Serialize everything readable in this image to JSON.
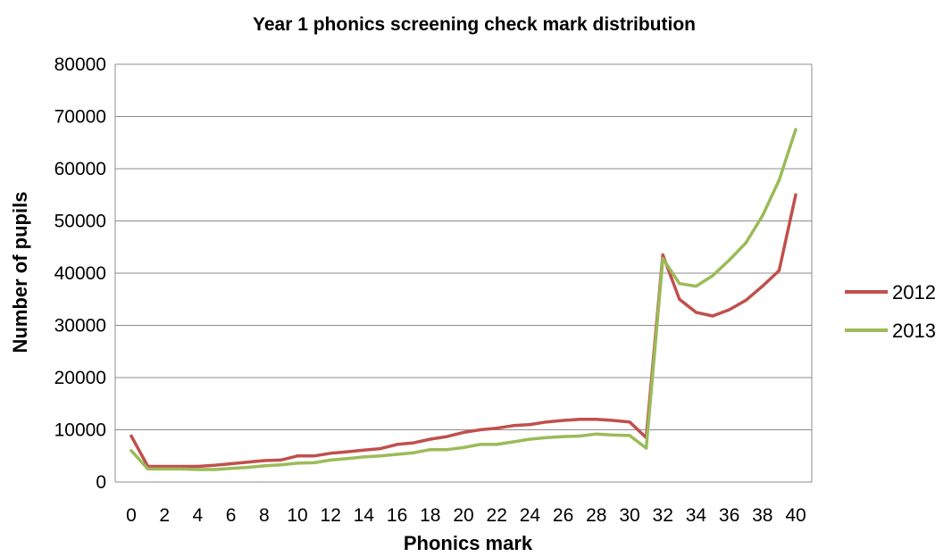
{
  "chart_data": {
    "type": "line",
    "title": "Year 1 phonics screening check mark distribution",
    "xlabel": "Phonics mark",
    "ylabel": "Number of pupils",
    "x": [
      0,
      1,
      2,
      3,
      4,
      5,
      6,
      7,
      8,
      9,
      10,
      11,
      12,
      13,
      14,
      15,
      16,
      17,
      18,
      19,
      20,
      21,
      22,
      23,
      24,
      25,
      26,
      27,
      28,
      29,
      30,
      31,
      32,
      33,
      34,
      35,
      36,
      37,
      38,
      39,
      40
    ],
    "xticks": [
      "0",
      "2",
      "4",
      "6",
      "8",
      "10",
      "12",
      "14",
      "16",
      "18",
      "20",
      "22",
      "24",
      "26",
      "28",
      "30",
      "32",
      "34",
      "36",
      "38",
      "40"
    ],
    "yticks": [
      "0",
      "10000",
      "20000",
      "30000",
      "40000",
      "50000",
      "60000",
      "70000",
      "80000"
    ],
    "ylim": [
      0,
      80000
    ],
    "xlim": [
      0,
      40
    ],
    "grid": "horizontal",
    "legend_position": "right",
    "series": [
      {
        "name": "2012",
        "color": "#c0504d",
        "values": [
          8800,
          3000,
          3000,
          3000,
          3000,
          3200,
          3500,
          3800,
          4100,
          4200,
          5000,
          5000,
          5500,
          5800,
          6100,
          6400,
          7200,
          7500,
          8200,
          8700,
          9500,
          10000,
          10300,
          10800,
          11000,
          11500,
          11800,
          12000,
          12000,
          11800,
          11500,
          8500,
          43500,
          35000,
          32500,
          31800,
          33000,
          34800,
          37500,
          40500,
          55000
        ]
      },
      {
        "name": "2013",
        "color": "#9bbb59",
        "values": [
          6000,
          2500,
          2500,
          2500,
          2400,
          2400,
          2600,
          2800,
          3100,
          3300,
          3600,
          3700,
          4200,
          4500,
          4800,
          5000,
          5300,
          5600,
          6200,
          6200,
          6600,
          7200,
          7200,
          7700,
          8200,
          8500,
          8700,
          8800,
          9200,
          9000,
          8900,
          6500,
          42800,
          38000,
          37500,
          39500,
          42500,
          45800,
          51000,
          57800,
          67500
        ]
      }
    ]
  }
}
